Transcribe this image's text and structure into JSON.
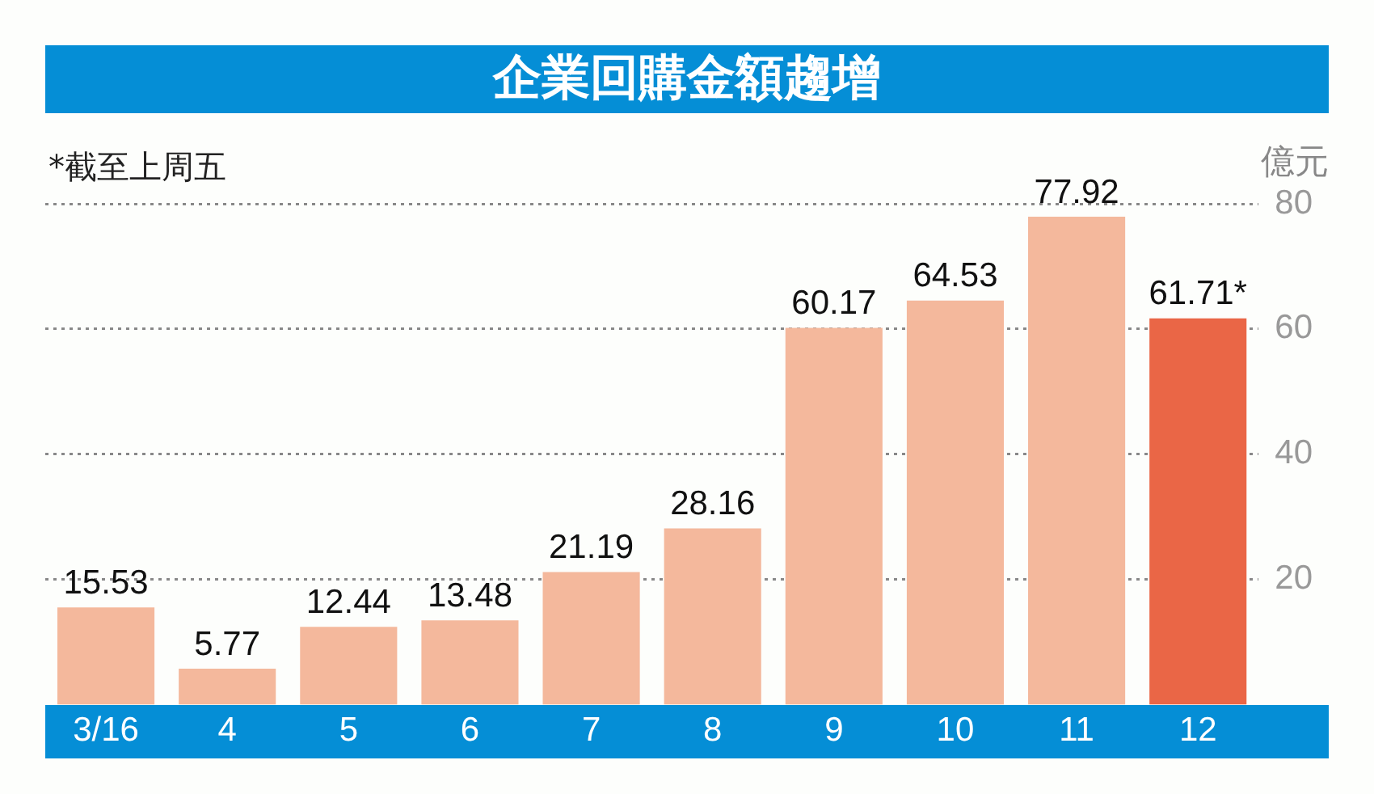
{
  "chart_data": {
    "type": "bar",
    "title": "企業回購金額趨增",
    "ylabel": "億元",
    "annotations": [
      "*截至上周五"
    ],
    "categories": [
      "3/16",
      "4",
      "5",
      "6",
      "7",
      "8",
      "9",
      "10",
      "11",
      "12"
    ],
    "values": [
      15.53,
      5.77,
      12.44,
      13.48,
      21.19,
      28.16,
      60.17,
      64.53,
      77.92,
      61.71
    ],
    "value_labels": [
      "15.53",
      "5.77",
      "12.44",
      "13.48",
      "21.19",
      "28.16",
      "60.17",
      "64.53",
      "77.92",
      "61.71*"
    ],
    "colors": [
      "#f4b89c",
      "#f4b89c",
      "#f4b89c",
      "#f4b89c",
      "#f4b89c",
      "#f4b89c",
      "#f4b89c",
      "#f4b89c",
      "#f4b89c",
      "#ea6646"
    ],
    "ylim": [
      0,
      80
    ],
    "yticks": [
      20,
      40,
      60,
      80
    ],
    "grid": "y",
    "legend": false
  }
}
